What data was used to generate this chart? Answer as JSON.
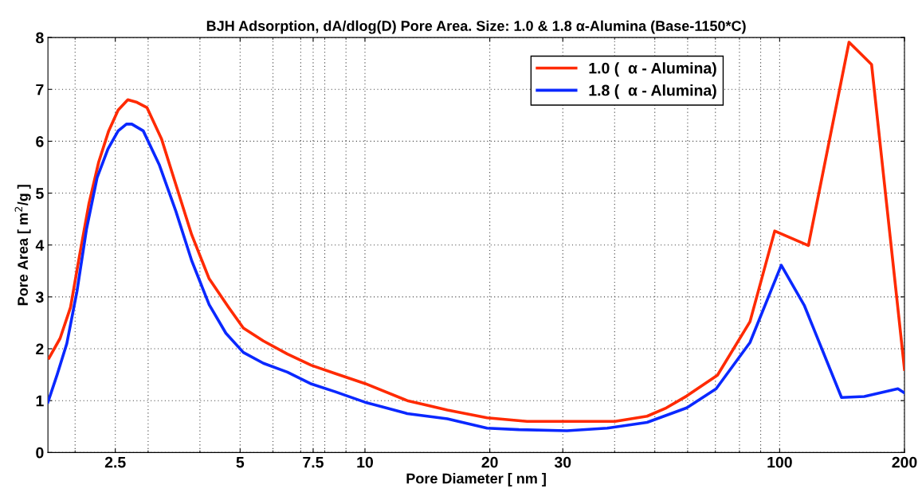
{
  "chart_data": {
    "type": "line",
    "title": "BJH Adsorption, dA/dlog(D) Pore Area. Size: 1.0 & 1.8 α-Alumina (Base-1150*C)",
    "xlabel": "Pore Diameter [ nm ]",
    "ylabel": "Pore Area [ m$^{2}$/g ]",
    "log": "x",
    "xlim": [
      1.72,
      200
    ],
    "xticks": [
      2.5,
      5,
      7.5,
      10,
      20,
      30,
      100,
      200
    ],
    "ylim": [
      0,
      8
    ],
    "yticks": [
      0,
      1,
      2,
      3,
      4,
      5,
      6,
      7,
      8
    ],
    "grid": true,
    "legend": "top right",
    "marker": "none",
    "line_style": "solid",
    "series": [
      {
        "name": "1.0 (  α - Alumina)",
        "color": "#ff2a00",
        "x": [
          1.73,
          1.84,
          1.95,
          2.05,
          2.16,
          2.28,
          2.41,
          2.54,
          2.68,
          2.82,
          2.98,
          3.23,
          3.52,
          3.82,
          4.21,
          4.69,
          5.09,
          5.69,
          6.5,
          7.43,
          8.49,
          10,
          12.65,
          15.8,
          19.7,
          24.6,
          30.7,
          40.1,
          47.9,
          53.3,
          59.7,
          70.8,
          84.8,
          97.3,
          117.3,
          147,
          166.6,
          200
        ],
        "values": [
          1.82,
          2.2,
          2.8,
          3.8,
          4.8,
          5.6,
          6.2,
          6.6,
          6.8,
          6.75,
          6.65,
          6.05,
          5.1,
          4.2,
          3.35,
          2.8,
          2.4,
          2.15,
          1.9,
          1.68,
          1.52,
          1.33,
          1.0,
          0.82,
          0.67,
          0.6,
          0.6,
          0.6,
          0.7,
          0.86,
          1.09,
          1.49,
          2.52,
          4.27,
          3.99,
          7.91,
          7.48,
          1.6
        ]
      },
      {
        "name": "1.8 (  α - Alumina)",
        "color": "#0a28ff",
        "x": [
          1.72,
          1.81,
          1.91,
          2.02,
          2.13,
          2.26,
          2.4,
          2.54,
          2.66,
          2.74,
          2.92,
          3.19,
          3.5,
          3.82,
          4.21,
          4.62,
          5.09,
          5.69,
          6.5,
          7.43,
          8.49,
          10,
          12.65,
          15.8,
          19.7,
          23.5,
          30.7,
          38.4,
          47.9,
          59.7,
          70.3,
          84.8,
          100.9,
          114.6,
          141,
          160,
          192.8,
          200
        ],
        "values": [
          0.97,
          1.5,
          2.1,
          3.1,
          4.3,
          5.3,
          5.85,
          6.2,
          6.33,
          6.33,
          6.2,
          5.55,
          4.65,
          3.7,
          2.85,
          2.3,
          1.93,
          1.72,
          1.55,
          1.32,
          1.17,
          0.97,
          0.75,
          0.65,
          0.47,
          0.44,
          0.42,
          0.47,
          0.58,
          0.86,
          1.23,
          2.12,
          3.61,
          2.84,
          1.06,
          1.08,
          1.23,
          1.15
        ]
      }
    ]
  }
}
